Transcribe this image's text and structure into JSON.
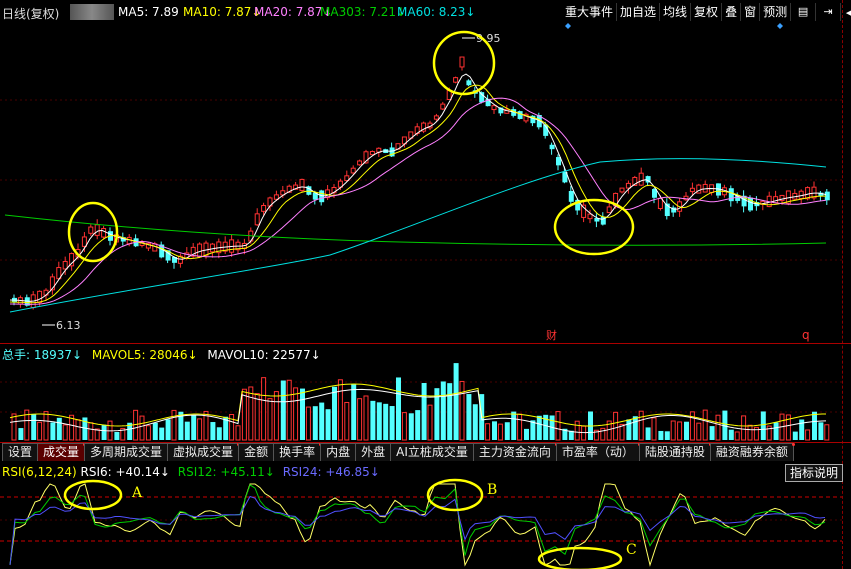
{
  "header": {
    "period": "日线(复权)",
    "ma5": "MA5: 7.89",
    "ma10": "MA10: 7.87↓",
    "ma20": "MA20: 7.87↓",
    "ma303": "MA303: 7.21↓",
    "ma60": "MA60: 8.23↓"
  },
  "toolbar": {
    "events": "重大事件",
    "add_fav": "加自选",
    "avg_line": "均线",
    "restore": "复权",
    "overlay": "叠",
    "window": "窗",
    "forecast": "预测"
  },
  "main_chart": {
    "high_label": "9.95",
    "low_label": "6.13",
    "cai_marker": "财",
    "q_marker": "q"
  },
  "volume_panel": {
    "total": "总手: 18937↓",
    "mavol5": "MAVOL5: 28046↓",
    "mavol10": "MAVOL10: 22577↓"
  },
  "tabs": [
    {
      "label": "设置"
    },
    {
      "label": "成交量"
    },
    {
      "label": "多周期成交量"
    },
    {
      "label": "虚拟成交量"
    },
    {
      "label": "金额"
    },
    {
      "label": "换手率"
    },
    {
      "label": "内盘"
    },
    {
      "label": "外盘"
    },
    {
      "label": "AI立桩成交量"
    },
    {
      "label": "主力资金流向"
    },
    {
      "label": "市盈率（动）"
    },
    {
      "label": "陆股通持股"
    },
    {
      "label": "融资融券余额"
    }
  ],
  "rsi_panel": {
    "title": "RSI(6,12,24)",
    "rsi6": "RSI6: +40.14↓",
    "rsi12": "RSI12: +45.11↓",
    "rsi24": "RSI24: +46.85↓",
    "explain": "指标说明"
  },
  "annotations": {
    "a": "A",
    "b": "B",
    "c": "C"
  },
  "colors": {
    "up": "#ff3232",
    "down": "#54ffff",
    "ma5": "#ffffff",
    "ma10": "#ffff00",
    "ma20": "#ff80ff",
    "ma303": "#00cc00",
    "ma60": "#00e0e0"
  }
}
